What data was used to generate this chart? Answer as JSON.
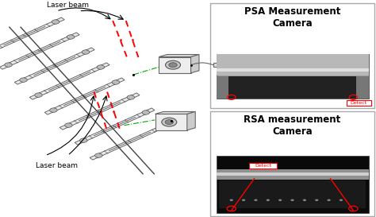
{
  "bg_color": "#ffffff",
  "psa_title": "PSA Measurement\nCamera",
  "rsa_title": "RSA measurement\nCamera",
  "psa_detect_label": "Detect",
  "rsa_detect_label": "Detect",
  "left_label_top": "Laser beam",
  "left_label_bottom": "Laser beam",
  "fig_width": 4.74,
  "fig_height": 2.73,
  "dpi": 100
}
